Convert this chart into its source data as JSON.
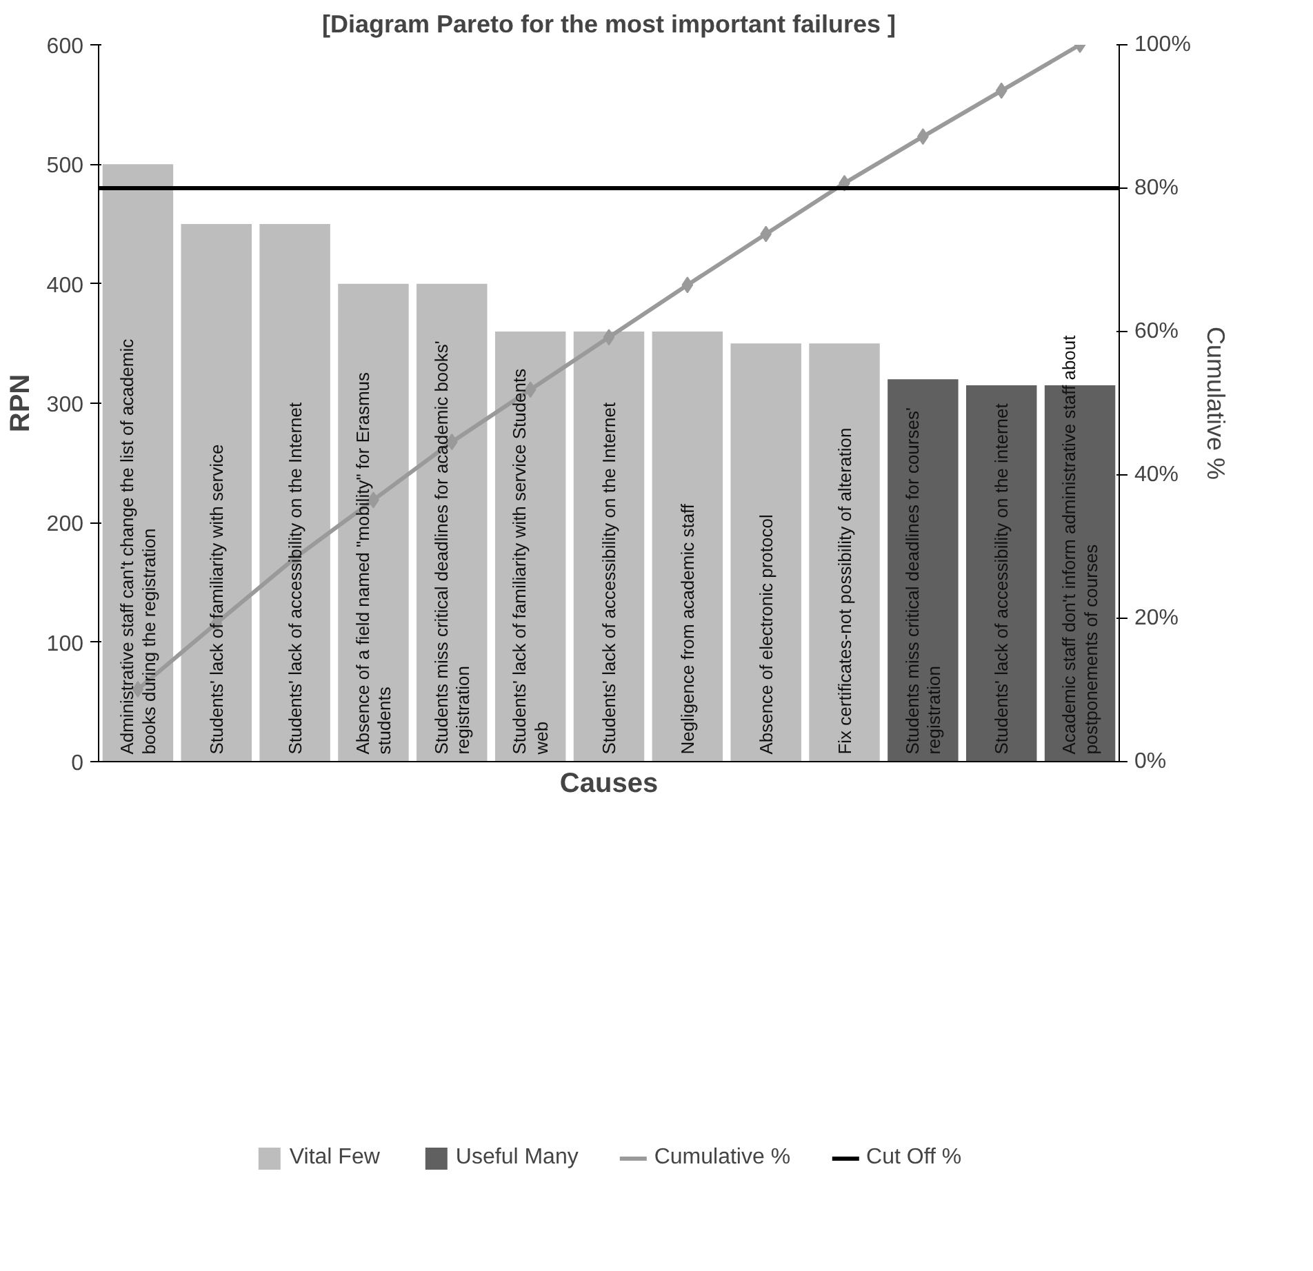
{
  "chart_data": {
    "type": "bar",
    "title": "[Diagram Pareto for the most important failures ]",
    "xlabel": "Causes",
    "ylabel": "RPN",
    "y2label": "Cumulative %",
    "categories": [
      "Administrative staff can't change the list of academic\nbooks during the registration",
      "Students' lack of familiarity with service",
      "Students' lack of accessibility on the  Internet",
      "Absence of a field named \"mobility\" for  Erasmus\nstudents",
      "Students miss critical deadlines for academic books'\nregistration",
      "Students' lack of familiarity with service  Students\nweb",
      "Students' lack of accessibility on the  Internet",
      "Negligence from academic staff",
      "Absence of  electronic protocol",
      "Fix certificates-not possibility of alteration",
      "Students miss critical deadlines for courses'\nregistration",
      "Students' lack of accessibility on the  internet",
      "Academic staff don't inform administrative staff about\npostponements of courses"
    ],
    "series": [
      {
        "name": "Vital Few",
        "color": "#bdbdbd",
        "values": [
          500,
          450,
          450,
          400,
          400,
          360,
          360,
          360,
          350,
          350,
          null,
          null,
          null
        ]
      },
      {
        "name": "Useful Many",
        "color": "#606060",
        "values": [
          null,
          null,
          null,
          null,
          null,
          null,
          null,
          null,
          null,
          null,
          320,
          315,
          315
        ]
      },
      {
        "name": "Cumulative %",
        "type": "line",
        "axis": "y2",
        "marker": "diamond",
        "color": "#9a9a9a",
        "values": [
          10.1,
          19.3,
          28.4,
          36.5,
          44.6,
          51.9,
          59.2,
          66.5,
          73.6,
          80.7,
          87.2,
          93.6,
          100
        ]
      }
    ],
    "ref_lines": [
      {
        "axis": "y2",
        "value": 80,
        "label": "Cut Off %",
        "color": "#000000",
        "line_style": "solid"
      }
    ],
    "ylim": [
      0,
      600
    ],
    "yticks": [
      0,
      100,
      200,
      300,
      400,
      500,
      600
    ],
    "y2lim": [
      0,
      100
    ],
    "y2ticks": [
      {
        "value": 0,
        "label": "0%"
      },
      {
        "value": 20,
        "label": "20%"
      },
      {
        "value": 40,
        "label": "40%"
      },
      {
        "value": 60,
        "label": "60%"
      },
      {
        "value": 80,
        "label": "80%"
      },
      {
        "value": 100,
        "label": "100%"
      }
    ],
    "grid": false,
    "legend": "bottom"
  }
}
